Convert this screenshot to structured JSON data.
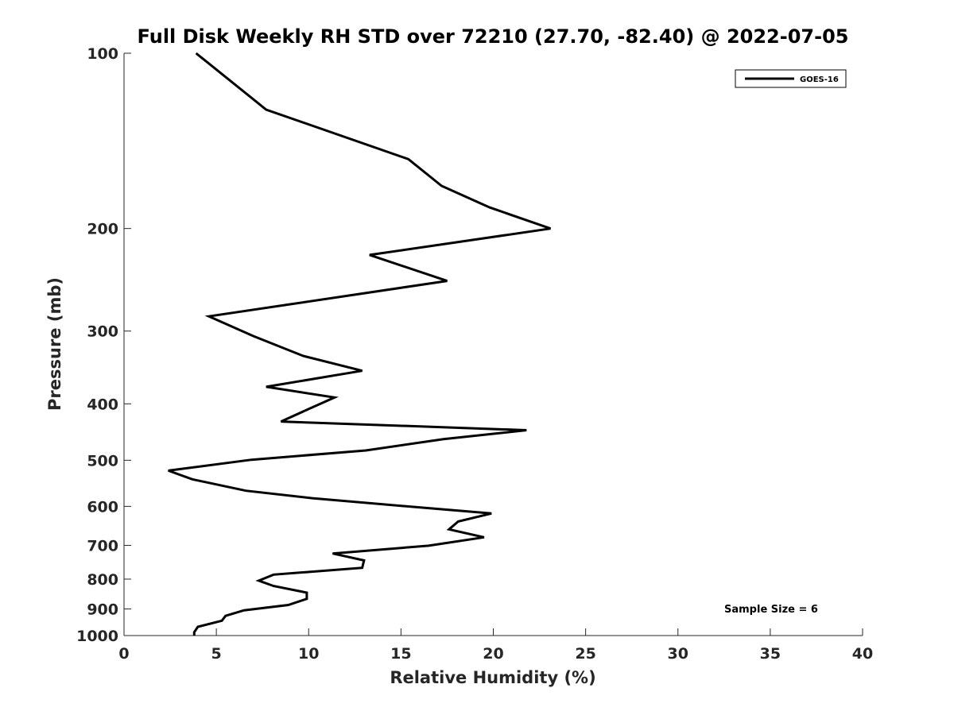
{
  "chart_data": {
    "type": "line",
    "title": "Full Disk Weekly RH STD over 72210 (27.70, -82.40) @ 2022-07-05",
    "xlabel": "Relative Humidity (%)",
    "ylabel": "Pressure (mb)",
    "xlim": [
      0,
      40
    ],
    "ylim": [
      100,
      1000
    ],
    "yscale": "log",
    "y_reversed": true,
    "xticks": [
      0,
      5,
      10,
      15,
      20,
      25,
      30,
      35,
      40
    ],
    "yticks": [
      100,
      200,
      300,
      400,
      500,
      600,
      700,
      800,
      900,
      1000
    ],
    "grid": false,
    "legend_position": "top-right",
    "annotation": "Sample Size = 6",
    "series": [
      {
        "name": "GOES-16",
        "color": "#000000",
        "points": [
          [
            3.9,
            100
          ],
          [
            7.7,
            125
          ],
          [
            15.4,
            152
          ],
          [
            17.2,
            169
          ],
          [
            19.8,
            184
          ],
          [
            23.1,
            200
          ],
          [
            13.3,
            222
          ],
          [
            17.5,
            246
          ],
          [
            4.6,
            283
          ],
          [
            7.0,
            306
          ],
          [
            9.7,
            331
          ],
          [
            12.9,
            351
          ],
          [
            7.7,
            374
          ],
          [
            11.4,
            390
          ],
          [
            10.1,
            407
          ],
          [
            8.5,
            429
          ],
          [
            21.8,
            444
          ],
          [
            17.3,
            460
          ],
          [
            13.1,
            481
          ],
          [
            6.9,
            499
          ],
          [
            2.4,
            521
          ],
          [
            3.7,
            539
          ],
          [
            6.6,
            564
          ],
          [
            10.2,
            581
          ],
          [
            15.6,
            601
          ],
          [
            19.9,
            617
          ],
          [
            18.1,
            637
          ],
          [
            17.6,
            657
          ],
          [
            19.5,
            678
          ],
          [
            16.5,
            701
          ],
          [
            11.3,
            723
          ],
          [
            13.0,
            743
          ],
          [
            12.9,
            765
          ],
          [
            8.1,
            786
          ],
          [
            7.3,
            805
          ],
          [
            8.1,
            822
          ],
          [
            9.9,
            844
          ],
          [
            9.9,
            865
          ],
          [
            8.9,
            886
          ],
          [
            6.5,
            905
          ],
          [
            5.5,
            925
          ],
          [
            5.3,
            943
          ],
          [
            4.0,
            966
          ],
          [
            3.8,
            987
          ],
          [
            3.8,
            1000
          ]
        ]
      }
    ]
  }
}
